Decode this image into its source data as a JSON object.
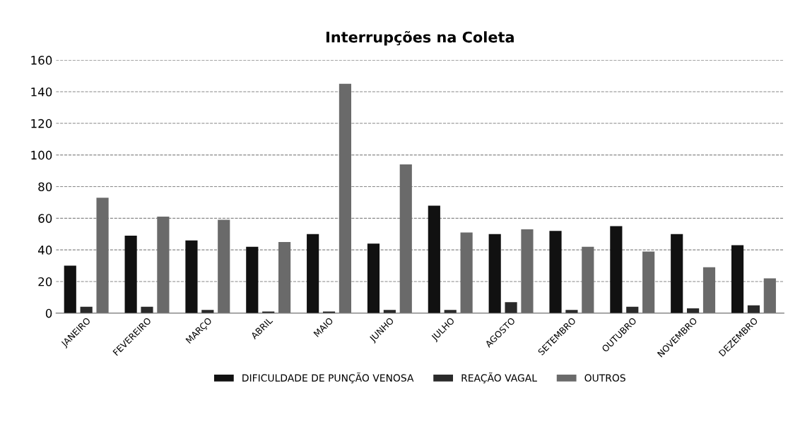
{
  "chart_data": {
    "type": "bar",
    "title": "Interrupções na Coleta",
    "categories": [
      "JANEIRO",
      "FEVEREIRO",
      "MARÇO",
      "ABRIL",
      "MAIO",
      "JUNHO",
      "JULHO",
      "AGOSTO",
      "SETEMBRO",
      "OUTUBRO",
      "NOVEMBRO",
      "DEZEMBRO"
    ],
    "series": [
      {
        "name": "DIFICULDADE DE PUNÇÃO VENOSA",
        "color": "#111111",
        "values": [
          30,
          49,
          46,
          42,
          50,
          44,
          68,
          50,
          52,
          55,
          50,
          43
        ]
      },
      {
        "name": "REAÇÃO VAGAL",
        "color": "#2a2a2a",
        "values": [
          4,
          4,
          2,
          1,
          1,
          2,
          2,
          7,
          2,
          4,
          3,
          5
        ]
      },
      {
        "name": "OUTROS",
        "color": "#6a6a6a",
        "values": [
          73,
          61,
          59,
          45,
          145,
          94,
          51,
          53,
          42,
          39,
          29,
          22
        ]
      }
    ],
    "ylim": [
      0,
      160
    ],
    "yticks": [
      0,
      20,
      40,
      60,
      80,
      100,
      120,
      140,
      160
    ],
    "grid": "y",
    "legend": "bottom"
  }
}
